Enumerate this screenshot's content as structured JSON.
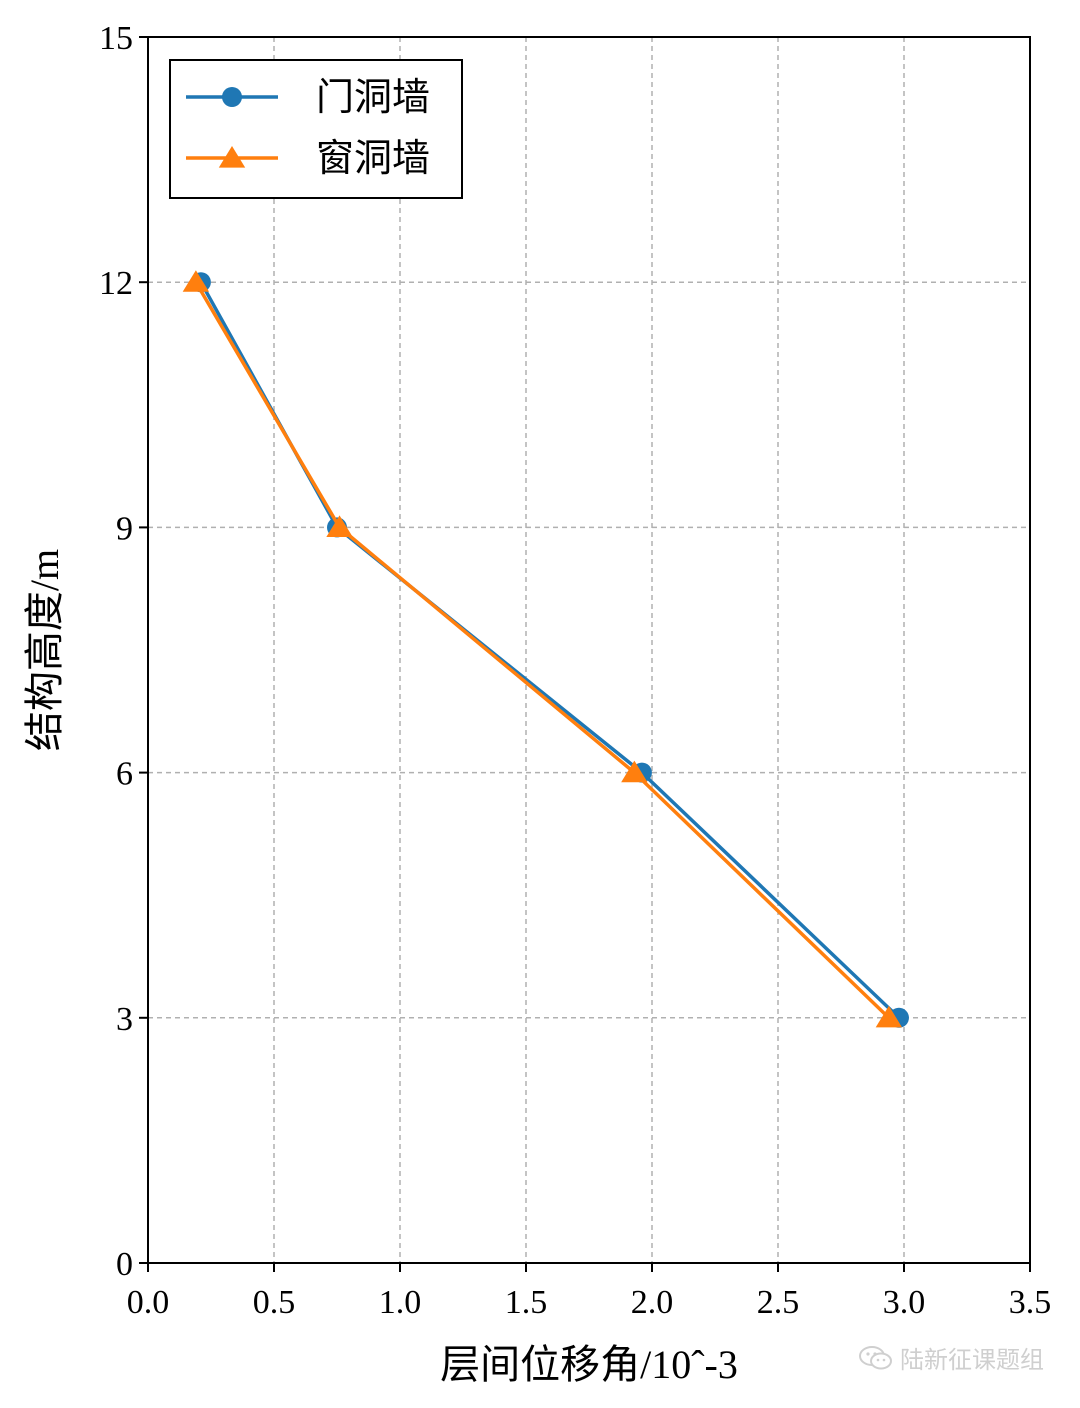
{
  "chart_data": {
    "type": "line",
    "xlabel": "层间位移角/10ˆ-3",
    "ylabel": "结构高度/m",
    "xlim": [
      0,
      3.5
    ],
    "ylim": [
      0,
      15
    ],
    "xticks": [
      0.0,
      0.5,
      1.0,
      1.5,
      2.0,
      2.5,
      3.0,
      3.5
    ],
    "xtick_labels": [
      "0.0",
      "0.5",
      "1.0",
      "1.5",
      "2.0",
      "2.5",
      "3.0",
      "3.5"
    ],
    "yticks": [
      0,
      3,
      6,
      9,
      12,
      15
    ],
    "ytick_labels": [
      "0",
      "3",
      "6",
      "9",
      "12",
      "15"
    ],
    "grid": true,
    "legend_position": "top-left",
    "series": [
      {
        "name": "门洞墙",
        "marker": "circle",
        "color": "#1f77b4",
        "x": [
          2.98,
          1.96,
          0.75,
          0.21
        ],
        "y": [
          3,
          6,
          9,
          12
        ]
      },
      {
        "name": "窗洞墙",
        "marker": "triangle",
        "color": "#ff7f0e",
        "x": [
          2.94,
          1.93,
          0.76,
          0.19
        ],
        "y": [
          3,
          6,
          9,
          12
        ]
      }
    ]
  },
  "watermark": {
    "text": "陆新征课题组",
    "icon": "wechat-icon"
  }
}
